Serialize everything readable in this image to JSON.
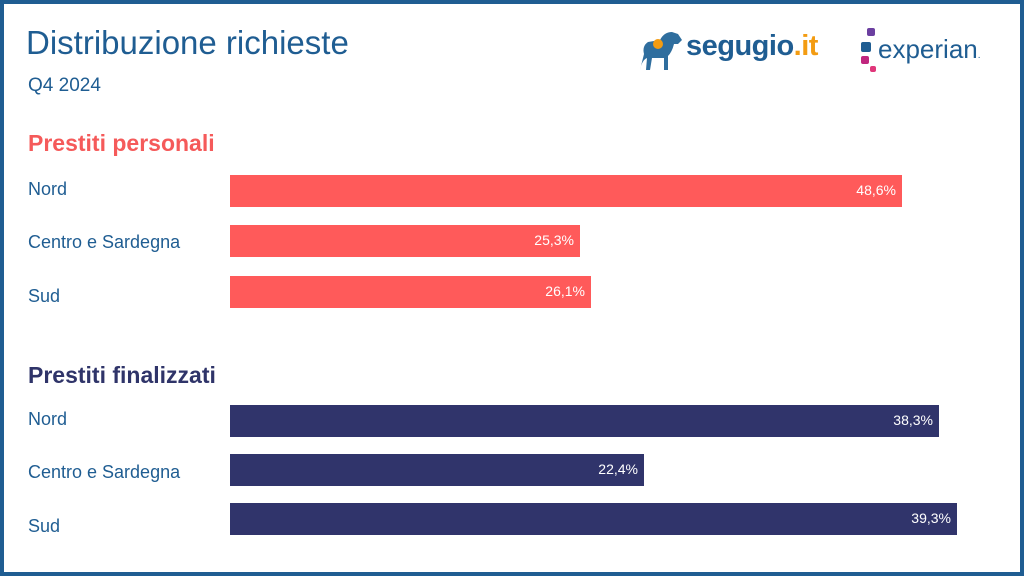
{
  "header": {
    "title": "Distribuzione richieste",
    "subtitle": "Q4 2024"
  },
  "logos": {
    "segugio": {
      "name": "segugio",
      "suffix": ".it"
    },
    "experian": {
      "name": "experian",
      "mark": "."
    }
  },
  "colors": {
    "prestiti_personali": "#ff5a5a",
    "prestiti_finalizzati": "#30346b",
    "text_primary": "#1f5d92",
    "border": "#1f5d92"
  },
  "chart_data": {
    "type": "bar",
    "orientation": "horizontal",
    "title": "Distribuzione richieste",
    "subtitle": "Q4 2024",
    "unit": "%",
    "xlim": [
      0,
      50
    ],
    "grid": false,
    "groups": [
      {
        "name": "Prestiti personali",
        "categories": [
          "Nord",
          "Centro e Sardegna",
          "Sud"
        ],
        "values": [
          48.6,
          25.3,
          26.1
        ],
        "labels": [
          "48,6%",
          "25,3%",
          "26,1%"
        ]
      },
      {
        "name": "Prestiti finalizzati",
        "categories": [
          "Nord",
          "Centro e Sardegna",
          "Sud"
        ],
        "values": [
          38.3,
          22.4,
          39.3
        ],
        "labels": [
          "38,3%",
          "22,4%",
          "39,3%"
        ]
      }
    ]
  }
}
